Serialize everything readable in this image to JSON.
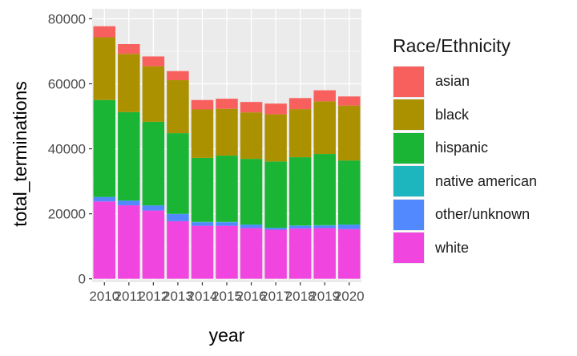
{
  "chart_data": {
    "type": "bar",
    "stacked": true,
    "xlabel": "year",
    "ylabel": "total_terminations",
    "ylim": [
      0,
      80000
    ],
    "yticks": [
      0,
      20000,
      40000,
      60000,
      80000
    ],
    "ytick_labels": [
      "0",
      "20000",
      "40000",
      "60000",
      "80000"
    ],
    "grid": true,
    "legend": {
      "title": "Race/Ethnicity",
      "placement": "right"
    },
    "categories": [
      "2010",
      "2011",
      "2012",
      "2013",
      "2014",
      "2015",
      "2016",
      "2017",
      "2018",
      "2019",
      "2020"
    ],
    "series": [
      {
        "name": "white",
        "color": "#F046DF",
        "values": [
          23800,
          22600,
          21000,
          17700,
          16300,
          16300,
          15600,
          15100,
          15500,
          15600,
          15300
        ]
      },
      {
        "name": "other/unknown",
        "color": "#5289FF",
        "values": [
          1300,
          1400,
          1500,
          2200,
          1100,
          1100,
          1000,
          500,
          800,
          800,
          1300
        ]
      },
      {
        "name": "native american",
        "color": "#1EB6BE",
        "values": [
          100,
          100,
          100,
          100,
          100,
          100,
          100,
          100,
          100,
          100,
          100
        ]
      },
      {
        "name": "hispanic",
        "color": "#1BB535",
        "values": [
          29800,
          27200,
          25700,
          24800,
          19700,
          20400,
          20200,
          20400,
          21000,
          21900,
          19700
        ]
      },
      {
        "name": "black",
        "color": "#AB9100",
        "values": [
          19300,
          17900,
          17100,
          16300,
          14900,
          14400,
          14300,
          14500,
          14800,
          16200,
          16900
        ]
      },
      {
        "name": "asian",
        "color": "#F8605E",
        "values": [
          3400,
          3000,
          3000,
          2800,
          2900,
          3100,
          3200,
          3300,
          3400,
          3400,
          2800
        ]
      }
    ],
    "legend_order": [
      "asian",
      "black",
      "hispanic",
      "native american",
      "other/unknown",
      "white"
    ]
  }
}
